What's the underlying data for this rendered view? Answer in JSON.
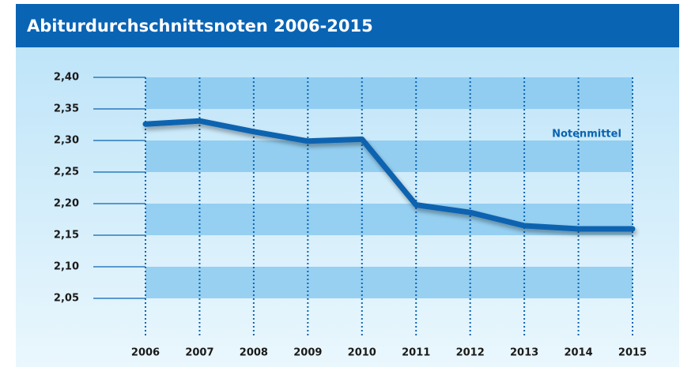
{
  "chart_data": {
    "type": "line",
    "title": "Abiturdurchschnittsnoten 2006-2015",
    "categories": [
      "2006",
      "2007",
      "2008",
      "2009",
      "2010",
      "2011",
      "2012",
      "2013",
      "2014",
      "2015"
    ],
    "series": [
      {
        "name": "Notenmittel",
        "color": "#0a63b0",
        "values": [
          2.326,
          2.331,
          2.314,
          2.299,
          2.302,
          2.198,
          2.186,
          2.165,
          2.16,
          2.16
        ]
      }
    ],
    "ylim": [
      2.0,
      2.4
    ],
    "yticks": [
      {
        "value": 2.05,
        "label": "2,05"
      },
      {
        "value": 2.1,
        "label": "2,10"
      },
      {
        "value": 2.15,
        "label": "2,15"
      },
      {
        "value": 2.2,
        "label": "2,20"
      },
      {
        "value": 2.25,
        "label": "2,25"
      },
      {
        "value": 2.3,
        "label": "2,30"
      },
      {
        "value": 2.35,
        "label": "2,35"
      },
      {
        "value": 2.4,
        "label": "2,40"
      }
    ],
    "grid": true
  }
}
